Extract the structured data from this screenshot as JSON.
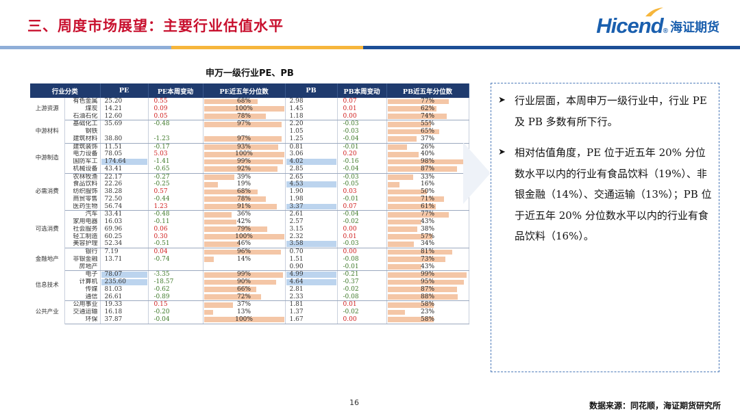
{
  "slide": {
    "title": "三、周度市场展望：主要行业估值水平",
    "logo_en": "Hicend",
    "logo_reg": "®",
    "logo_cn": "海证期货",
    "table_title": "申万一级行业PE、PB",
    "page_number": "16",
    "source": "数据来源：同花顺，海证期货研究所"
  },
  "colors": {
    "title_red": "#c8102e",
    "brand_blue": "#1a5fae",
    "header_navy": "#1f3b6e",
    "bar_peach": "#f4c6a6",
    "highlight_blue": "#bcd4ee",
    "negative_green": "#3f7a2a",
    "positive_red": "#d02020"
  },
  "table": {
    "headers": [
      "行业分类",
      "PE",
      "PE本周变动",
      "PE近五年分位数",
      "PB",
      "PB本周变动",
      "PB近五年分位数"
    ],
    "groups": [
      {
        "sector": "上游资源",
        "rows": [
          {
            "industry": "有色金属",
            "pe": "25.20",
            "pe_chg": "0.55",
            "pe_pct": "68%",
            "pe_pct_val": 0.68,
            "pb": "2.98",
            "pb_chg": "0.07",
            "pb_pct": "77%",
            "pb_pct_val": 0.77
          },
          {
            "industry": "煤炭",
            "pe": "14.21",
            "pe_chg": "0.09",
            "pe_pct": "100%",
            "pe_pct_val": 1.0,
            "pb": "1.45",
            "pb_chg": "0.01",
            "pb_pct": "62%",
            "pb_pct_val": 0.62
          },
          {
            "industry": "石油石化",
            "pe": "12.60",
            "pe_chg": "0.05",
            "pe_pct": "78%",
            "pe_pct_val": 0.78,
            "pb": "1.18",
            "pb_chg": "0.00",
            "pb_pct": "74%",
            "pb_pct_val": 0.74
          }
        ]
      },
      {
        "sector": "中游材料",
        "rows": [
          {
            "industry": "基础化工",
            "pe": "35.69",
            "pe_chg": "-0.48",
            "pe_pct": "97%",
            "pe_pct_val": 0.97,
            "pb": "2.20",
            "pb_chg": "-0.03",
            "pb_pct": "55%",
            "pb_pct_val": 0.55
          },
          {
            "industry": "钢铁",
            "pe": "",
            "pe_chg": "",
            "pe_pct": "",
            "pe_pct_val": 0,
            "pb": "1.05",
            "pb_chg": "-0.03",
            "pb_pct": "65%",
            "pb_pct_val": 0.65
          },
          {
            "industry": "建筑材料",
            "pe": "38.80",
            "pe_chg": "-1.23",
            "pe_pct": "97%",
            "pe_pct_val": 0.97,
            "pb": "1.25",
            "pb_chg": "-0.04",
            "pb_pct": "37%",
            "pb_pct_val": 0.37
          }
        ]
      },
      {
        "sector": "中游制造",
        "rows": [
          {
            "industry": "建筑装饰",
            "pe": "11.51",
            "pe_chg": "-0.17",
            "pe_pct": "93%",
            "pe_pct_val": 0.93,
            "pb": "0.81",
            "pb_chg": "-0.01",
            "pb_pct": "26%",
            "pb_pct_val": 0.26
          },
          {
            "industry": "电力设备",
            "pe": "78.05",
            "pe_chg": "5.03",
            "pe_pct": "100%",
            "pe_pct_val": 1.0,
            "pb": "3.06",
            "pb_chg": "0.20",
            "pb_pct": "40%",
            "pb_pct_val": 0.4
          },
          {
            "industry": "国防军工",
            "pe": "174.64",
            "pe_chg": "-1.41",
            "pe_pct": "99%",
            "pe_pct_val": 0.99,
            "pb": "4.02",
            "pb_chg": "-0.16",
            "pb_pct": "98%",
            "pb_pct_val": 0.98
          },
          {
            "industry": "机械设备",
            "pe": "43.41",
            "pe_chg": "-0.65",
            "pe_pct": "92%",
            "pe_pct_val": 0.92,
            "pb": "2.85",
            "pb_chg": "-0.04",
            "pb_pct": "87%",
            "pb_pct_val": 0.87
          }
        ]
      },
      {
        "sector": "必需消费",
        "rows": [
          {
            "industry": "农林牧渔",
            "pe": "22.17",
            "pe_chg": "-0.27",
            "pe_pct": "39%",
            "pe_pct_val": 0.39,
            "pb": "2.65",
            "pb_chg": "-0.03",
            "pb_pct": "33%",
            "pb_pct_val": 0.33
          },
          {
            "industry": "食品饮料",
            "pe": "22.26",
            "pe_chg": "-0.25",
            "pe_pct": "19%",
            "pe_pct_val": 0.19,
            "pb": "4.53",
            "pb_chg": "-0.05",
            "pb_pct": "16%",
            "pb_pct_val": 0.16
          },
          {
            "industry": "纺织服饰",
            "pe": "38.28",
            "pe_chg": "0.57",
            "pe_pct": "68%",
            "pe_pct_val": 0.68,
            "pb": "1.90",
            "pb_chg": "0.03",
            "pb_pct": "50%",
            "pb_pct_val": 0.5
          },
          {
            "industry": "商贸零售",
            "pe": "72.50",
            "pe_chg": "-0.44",
            "pe_pct": "78%",
            "pe_pct_val": 0.78,
            "pb": "1.98",
            "pb_chg": "-0.01",
            "pb_pct": "71%",
            "pb_pct_val": 0.71
          },
          {
            "industry": "医药生物",
            "pe": "56.74",
            "pe_chg": "1.23",
            "pe_pct": "91%",
            "pe_pct_val": 0.91,
            "pb": "3.37",
            "pb_chg": "0.07",
            "pb_pct": "61%",
            "pb_pct_val": 0.61
          }
        ]
      },
      {
        "sector": "可选消费",
        "rows": [
          {
            "industry": "汽车",
            "pe": "33.41",
            "pe_chg": "-0.48",
            "pe_pct": "36%",
            "pe_pct_val": 0.36,
            "pb": "2.61",
            "pb_chg": "-0.04",
            "pb_pct": "77%",
            "pb_pct_val": 0.77
          },
          {
            "industry": "家用电器",
            "pe": "16.03",
            "pe_chg": "-0.11",
            "pe_pct": "42%",
            "pe_pct_val": 0.42,
            "pb": "2.57",
            "pb_chg": "-0.02",
            "pb_pct": "43%",
            "pb_pct_val": 0.43
          },
          {
            "industry": "社会服务",
            "pe": "69.96",
            "pe_chg": "0.06",
            "pe_pct": "79%",
            "pe_pct_val": 0.79,
            "pb": "3.15",
            "pb_chg": "0.00",
            "pb_pct": "38%",
            "pb_pct_val": 0.38
          },
          {
            "industry": "轻工制造",
            "pe": "60.25",
            "pe_chg": "0.30",
            "pe_pct": "100%",
            "pe_pct_val": 1.0,
            "pb": "2.32",
            "pb_chg": "0.01",
            "pb_pct": "57%",
            "pb_pct_val": 0.57
          },
          {
            "industry": "美容护理",
            "pe": "52.34",
            "pe_chg": "-0.51",
            "pe_pct": "46%",
            "pe_pct_val": 0.46,
            "pb": "3.58",
            "pb_chg": "-0.03",
            "pb_pct": "34%",
            "pb_pct_val": 0.34
          }
        ]
      },
      {
        "sector": "金融地产",
        "rows": [
          {
            "industry": "银行",
            "pe": "7.19",
            "pe_chg": "0.04",
            "pe_pct": "96%",
            "pe_pct_val": 0.96,
            "pb": "0.70",
            "pb_chg": "0.00",
            "pb_pct": "81%",
            "pb_pct_val": 0.81
          },
          {
            "industry": "非银金融",
            "pe": "13.71",
            "pe_chg": "-0.74",
            "pe_pct": "14%",
            "pe_pct_val": 0.14,
            "pb": "1.51",
            "pb_chg": "-0.08",
            "pb_pct": "73%",
            "pb_pct_val": 0.73
          },
          {
            "industry": "房地产",
            "pe": "",
            "pe_chg": "",
            "pe_pct": "",
            "pe_pct_val": 0,
            "pb": "0.90",
            "pb_chg": "-0.01",
            "pb_pct": "43%",
            "pb_pct_val": 0.43
          }
        ]
      },
      {
        "sector": "信息技术",
        "rows": [
          {
            "industry": "电子",
            "pe": "78.07",
            "pe_chg": "-3.35",
            "pe_pct": "99%",
            "pe_pct_val": 0.99,
            "pb": "4.99",
            "pb_chg": "-0.21",
            "pb_pct": "99%",
            "pb_pct_val": 0.99
          },
          {
            "industry": "计算机",
            "pe": "235.60",
            "pe_chg": "-18.57",
            "pe_pct": "90%",
            "pe_pct_val": 0.9,
            "pb": "4.64",
            "pb_chg": "-0.37",
            "pb_pct": "95%",
            "pb_pct_val": 0.95
          },
          {
            "industry": "传媒",
            "pe": "81.03",
            "pe_chg": "-0.62",
            "pe_pct": "66%",
            "pe_pct_val": 0.66,
            "pb": "2.81",
            "pb_chg": "-0.02",
            "pb_pct": "87%",
            "pb_pct_val": 0.87
          },
          {
            "industry": "通信",
            "pe": "26.61",
            "pe_chg": "-0.89",
            "pe_pct": "72%",
            "pe_pct_val": 0.72,
            "pb": "2.33",
            "pb_chg": "-0.08",
            "pb_pct": "88%",
            "pb_pct_val": 0.88
          }
        ]
      },
      {
        "sector": "公共产业",
        "rows": [
          {
            "industry": "公用事业",
            "pe": "19.33",
            "pe_chg": "0.15",
            "pe_pct": "37%",
            "pe_pct_val": 0.37,
            "pb": "1.81",
            "pb_chg": "0.01",
            "pb_pct": "58%",
            "pb_pct_val": 0.58
          },
          {
            "industry": "交通运输",
            "pe": "16.18",
            "pe_chg": "-0.20",
            "pe_pct": "13%",
            "pe_pct_val": 0.13,
            "pb": "1.37",
            "pb_chg": "-0.02",
            "pb_pct": "23%",
            "pb_pct_val": 0.23
          },
          {
            "industry": "环保",
            "pe": "37.87",
            "pe_chg": "-0.04",
            "pe_pct": "100%",
            "pe_pct_val": 1.0,
            "pb": "1.67",
            "pb_chg": "0.00",
            "pb_pct": "58%",
            "pb_pct_val": 0.58
          }
        ]
      }
    ]
  },
  "notes": [
    {
      "bullet": "➤",
      "text": "行业层面，本周申万一级行业中，行业 PE 及 PB 多数有所下行。"
    },
    {
      "bullet": "➤",
      "text": "相对估值角度，PE 位于近五年 20% 分位数水平以内的行业有食品饮料（19%）、非银金融（14%）、交通运输（13%）；PB 位于近五年 20% 分位数水平以内的行业有食品饮料（16%）。"
    }
  ]
}
